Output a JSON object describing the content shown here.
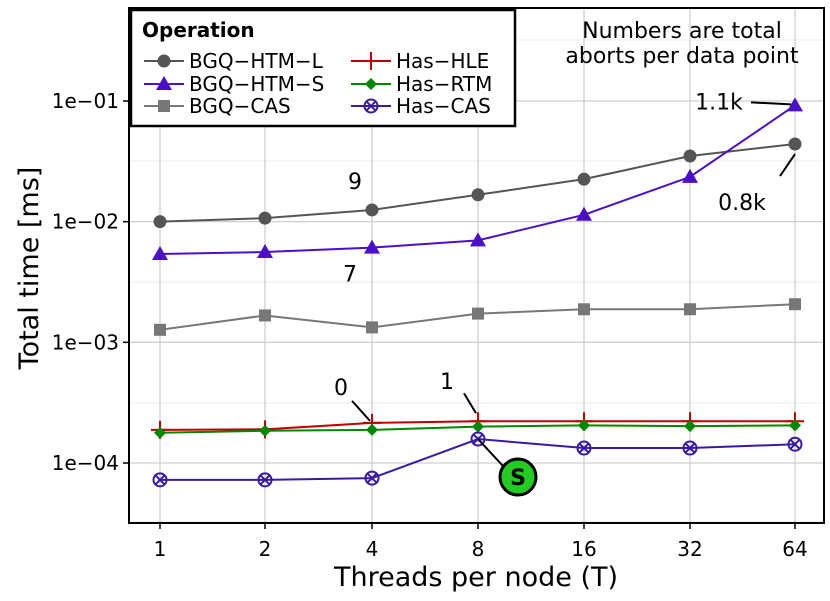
{
  "chart_data": {
    "type": "line",
    "xlabel": "Threads per node (T)",
    "ylabel": "Total time [ms]",
    "y_scale": "log",
    "ylim": [
      3.5e-05,
      0.6
    ],
    "grid": true,
    "x": [
      1,
      2,
      4,
      8,
      16,
      32,
      64
    ],
    "x_tick_labels": [
      "1",
      "2",
      "4",
      "8",
      "16",
      "32",
      "64"
    ],
    "y_ticks": [
      0.0001,
      0.001,
      0.01,
      0.1
    ],
    "y_tick_labels": [
      "1e−04",
      "1e−03",
      "1e−02",
      "1e−01"
    ],
    "legend": {
      "title": "Operation",
      "placement": "top-left",
      "columns": [
        [
          "BGQ−HTM−L",
          "BGQ−HTM−S",
          "BGQ−CAS"
        ],
        [
          "Has−HLE",
          "Has−RTM",
          "Has−CAS"
        ]
      ]
    },
    "series": [
      {
        "name": "BGQ−HTM−L",
        "marker": "circle",
        "color": "#555555",
        "values": [
          0.01,
          0.0107,
          0.0125,
          0.0167,
          0.0225,
          0.035,
          0.044
        ]
      },
      {
        "name": "BGQ−HTM−S",
        "marker": "triangle",
        "color": "#4a0fc6",
        "values": [
          0.0054,
          0.0056,
          0.0061,
          0.007,
          0.0114,
          0.0235,
          0.092
        ]
      },
      {
        "name": "BGQ−CAS",
        "marker": "square",
        "color": "#777777",
        "values": [
          0.00127,
          0.00167,
          0.00133,
          0.00173,
          0.00188,
          0.00188,
          0.00207
        ]
      },
      {
        "name": "Has−HLE",
        "marker": "plus",
        "color": "#c00000",
        "values": [
          0.000188,
          0.00019,
          0.000215,
          0.000222,
          0.000222,
          0.000222,
          0.000222
        ]
      },
      {
        "name": "Has−RTM",
        "marker": "diamond",
        "color": "#008800",
        "values": [
          0.000178,
          0.000185,
          0.000188,
          0.0002,
          0.000205,
          0.000202,
          0.000205
        ]
      },
      {
        "name": "Has−CAS",
        "marker": "circle-x",
        "color": "#3a1aa0",
        "values": [
          7.25e-05,
          7.25e-05,
          7.5e-05,
          0.000158,
          0.000133,
          0.000133,
          0.000143
        ]
      }
    ],
    "note_lines": [
      "Numbers are total",
      "aborts per data point"
    ],
    "annotations": [
      {
        "text": "9",
        "x": 4,
        "series": "BGQ−HTM−L"
      },
      {
        "text": "7",
        "x": 4,
        "series": "BGQ−HTM−S"
      },
      {
        "text": "1.1k",
        "x": 64,
        "series": "BGQ−HTM−S"
      },
      {
        "text": "0.8k",
        "x": 64,
        "series": "BGQ−HTM−L"
      },
      {
        "text": "0",
        "x": 4,
        "series": "Has−HLE"
      },
      {
        "text": "1",
        "x": 8,
        "series": "Has−HLE"
      },
      {
        "text": "S",
        "x": 8,
        "series": "Has−CAS",
        "badge_color": "#22cc22"
      }
    ]
  }
}
